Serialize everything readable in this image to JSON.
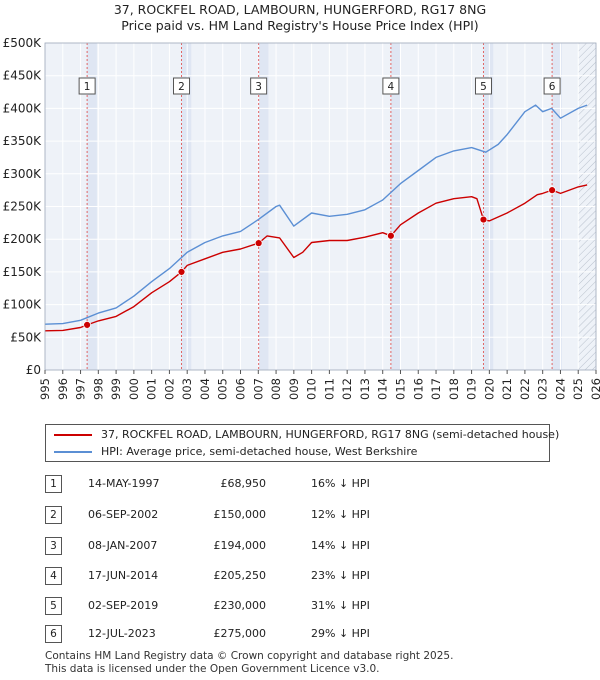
{
  "title": {
    "line1": "37, ROCKFEL ROAD, LAMBOURN, HUNGERFORD, RG17 8NG",
    "line2": "Price paid vs. HM Land Registry's House Price Index (HPI)"
  },
  "chart_data": {
    "type": "line",
    "xlim": [
      1995,
      2026
    ],
    "ylim": [
      0,
      500000
    ],
    "y_ticks": [
      0,
      50000,
      100000,
      150000,
      200000,
      250000,
      300000,
      350000,
      400000,
      450000,
      500000
    ],
    "y_tick_labels": [
      "£0",
      "£50K",
      "£100K",
      "£150K",
      "£200K",
      "£250K",
      "£300K",
      "£350K",
      "£400K",
      "£450K",
      "£500K"
    ],
    "x_ticks": [
      1995,
      1996,
      1997,
      1998,
      1999,
      2000,
      2001,
      2002,
      2003,
      2004,
      2005,
      2006,
      2007,
      2008,
      2009,
      2010,
      2011,
      2012,
      2013,
      2014,
      2015,
      2016,
      2017,
      2018,
      2019,
      2020,
      2021,
      2022,
      2023,
      2024,
      2025,
      2026
    ],
    "x_tick_labels": [
      "1995",
      "1996",
      "1997",
      "1998",
      "1999",
      "2000",
      "2001",
      "2002",
      "2003",
      "2004",
      "2005",
      "2006",
      "2007",
      "2008",
      "2009",
      "2010",
      "2011",
      "2012",
      "2013",
      "2014",
      "2015",
      "2016",
      "2017",
      "2018",
      "2019",
      "2020",
      "2021",
      "2022",
      "2023",
      "2024",
      "2025",
      "2026"
    ],
    "grid": true,
    "series": [
      {
        "name": "37, ROCKFEL ROAD, LAMBOURN, HUNGERFORD, RG17 8NG (semi-detached house)",
        "color": "#cc0000",
        "points": [
          [
            1995.0,
            60000
          ],
          [
            1996.0,
            60500
          ],
          [
            1997.0,
            65000
          ],
          [
            1997.37,
            68950
          ],
          [
            1998.0,
            75000
          ],
          [
            1999.0,
            82000
          ],
          [
            2000.0,
            97000
          ],
          [
            2001.0,
            118000
          ],
          [
            2002.0,
            135000
          ],
          [
            2002.68,
            150000
          ],
          [
            2003.0,
            160000
          ],
          [
            2004.0,
            170000
          ],
          [
            2005.0,
            180000
          ],
          [
            2006.0,
            185000
          ],
          [
            2007.02,
            194000
          ],
          [
            2007.5,
            205000
          ],
          [
            2008.2,
            202000
          ],
          [
            2009.0,
            172000
          ],
          [
            2009.5,
            180000
          ],
          [
            2010.0,
            195000
          ],
          [
            2011.0,
            198000
          ],
          [
            2012.0,
            198000
          ],
          [
            2013.0,
            203000
          ],
          [
            2014.0,
            210000
          ],
          [
            2014.46,
            205250
          ],
          [
            2015.0,
            222000
          ],
          [
            2016.0,
            240000
          ],
          [
            2017.0,
            255000
          ],
          [
            2018.0,
            262000
          ],
          [
            2019.0,
            265000
          ],
          [
            2019.3,
            262000
          ],
          [
            2019.67,
            230000
          ],
          [
            2020.0,
            228000
          ],
          [
            2021.0,
            240000
          ],
          [
            2022.0,
            255000
          ],
          [
            2022.7,
            268000
          ],
          [
            2023.0,
            270000
          ],
          [
            2023.53,
            275000
          ],
          [
            2024.0,
            270000
          ],
          [
            2025.0,
            280000
          ],
          [
            2025.5,
            283000
          ]
        ]
      },
      {
        "name": "HPI: Average price, semi-detached house, West Berkshire",
        "color": "#5b8fd4",
        "points": [
          [
            1995.0,
            70000
          ],
          [
            1996.0,
            71000
          ],
          [
            1997.0,
            76000
          ],
          [
            1998.0,
            87000
          ],
          [
            1999.0,
            95000
          ],
          [
            2000.0,
            113000
          ],
          [
            2001.0,
            135000
          ],
          [
            2002.0,
            155000
          ],
          [
            2003.0,
            180000
          ],
          [
            2004.0,
            195000
          ],
          [
            2005.0,
            205000
          ],
          [
            2006.0,
            212000
          ],
          [
            2007.0,
            230000
          ],
          [
            2008.0,
            250000
          ],
          [
            2008.2,
            252000
          ],
          [
            2009.0,
            220000
          ],
          [
            2010.0,
            240000
          ],
          [
            2011.0,
            235000
          ],
          [
            2012.0,
            238000
          ],
          [
            2013.0,
            245000
          ],
          [
            2014.0,
            260000
          ],
          [
            2015.0,
            285000
          ],
          [
            2016.0,
            305000
          ],
          [
            2017.0,
            325000
          ],
          [
            2018.0,
            335000
          ],
          [
            2019.0,
            340000
          ],
          [
            2019.8,
            333000
          ],
          [
            2020.5,
            345000
          ],
          [
            2021.0,
            360000
          ],
          [
            2022.0,
            395000
          ],
          [
            2022.6,
            405000
          ],
          [
            2023.0,
            395000
          ],
          [
            2023.5,
            400000
          ],
          [
            2024.0,
            385000
          ],
          [
            2025.0,
            400000
          ],
          [
            2025.5,
            405000
          ]
        ]
      }
    ],
    "sales": [
      {
        "num": "1",
        "x": 1997.37,
        "price": 68950
      },
      {
        "num": "2",
        "x": 2002.68,
        "price": 150000
      },
      {
        "num": "3",
        "x": 2007.02,
        "price": 194000
      },
      {
        "num": "4",
        "x": 2014.46,
        "price": 205250
      },
      {
        "num": "5",
        "x": 2019.67,
        "price": 230000
      },
      {
        "num": "6",
        "x": 2023.53,
        "price": 275000
      }
    ],
    "future_from": 2025.0
  },
  "legend": {
    "property_label": "37, ROCKFEL ROAD, LAMBOURN, HUNGERFORD, RG17 8NG (semi-detached house)",
    "hpi_label": "HPI: Average price, semi-detached house, West Berkshire",
    "property_color": "#cc0000",
    "hpi_color": "#5b8fd4"
  },
  "sales_table": [
    {
      "num": "1",
      "date": "14-MAY-1997",
      "price": "£68,950",
      "delta": "16% ↓ HPI"
    },
    {
      "num": "2",
      "date": "06-SEP-2002",
      "price": "£150,000",
      "delta": "12% ↓ HPI"
    },
    {
      "num": "3",
      "date": "08-JAN-2007",
      "price": "£194,000",
      "delta": "14% ↓ HPI"
    },
    {
      "num": "4",
      "date": "17-JUN-2014",
      "price": "£205,250",
      "delta": "23% ↓ HPI"
    },
    {
      "num": "5",
      "date": "02-SEP-2019",
      "price": "£230,000",
      "delta": "31% ↓ HPI"
    },
    {
      "num": "6",
      "date": "12-JUL-2023",
      "price": "£275,000",
      "delta": "29% ↓ HPI"
    }
  ],
  "footer": {
    "line1": "Contains HM Land Registry data © Crown copyright and database right 2025.",
    "line2": "This data is licensed under the Open Government Licence v3.0."
  }
}
